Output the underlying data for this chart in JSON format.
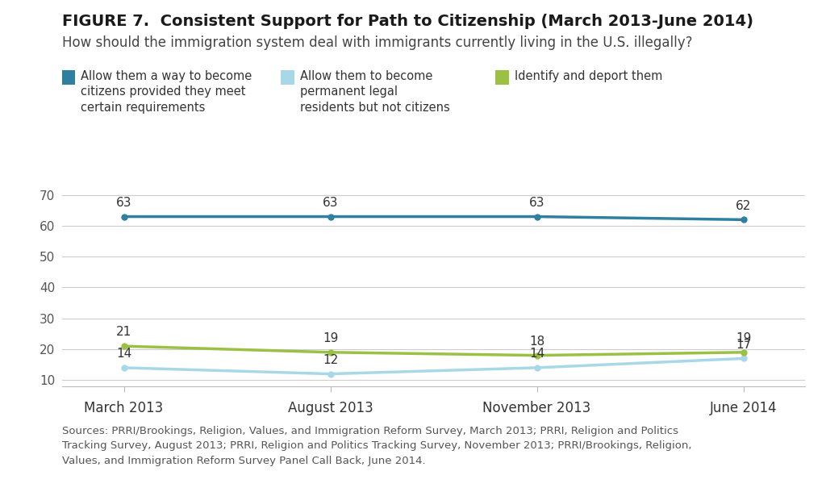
{
  "title_bold": "FIGURE 7.  Consistent Support for Path to Citizenship (March 2013-June 2014)",
  "subtitle": "How should the immigration system deal with immigrants currently living in the U.S. illegally?",
  "x_labels": [
    "March 2013",
    "August 2013",
    "November 2013",
    "June 2014"
  ],
  "x_positions": [
    0,
    1,
    2,
    3
  ],
  "series": [
    {
      "name": "Allow them a way to become\ncitizens provided they meet\ncertain requirements",
      "values": [
        63,
        63,
        63,
        62
      ],
      "color": "#2e7fa0",
      "linewidth": 2.5
    },
    {
      "name": "Allow them to become\npermanent legal\nresidents but not citizens",
      "values": [
        14,
        12,
        14,
        17
      ],
      "color": "#a8d8e8",
      "linewidth": 2.5
    },
    {
      "name": "Identify and deport them",
      "values": [
        21,
        19,
        18,
        19
      ],
      "color": "#9ac144",
      "linewidth": 2.5
    }
  ],
  "yticks": [
    10,
    20,
    30,
    40,
    50,
    60,
    70
  ],
  "ylim": [
    8,
    75
  ],
  "sources_text": "Sources: PRRI/Brookings, Religion, Values, and Immigration Reform Survey, March 2013; PRRI, Religion and Politics\nTracking Survey, August 2013; PRRI, Religion and Politics Tracking Survey, November 2013; PRRI/Brookings, Religion,\nValues, and Immigration Reform Survey Panel Call Back, June 2014.",
  "background_color": "#ffffff",
  "marker_size": 5,
  "label_fontsize": 11,
  "tick_fontsize": 11,
  "title_fontsize": 14,
  "subtitle_fontsize": 12,
  "sources_fontsize": 9.5,
  "legend_fontsize": 10.5
}
